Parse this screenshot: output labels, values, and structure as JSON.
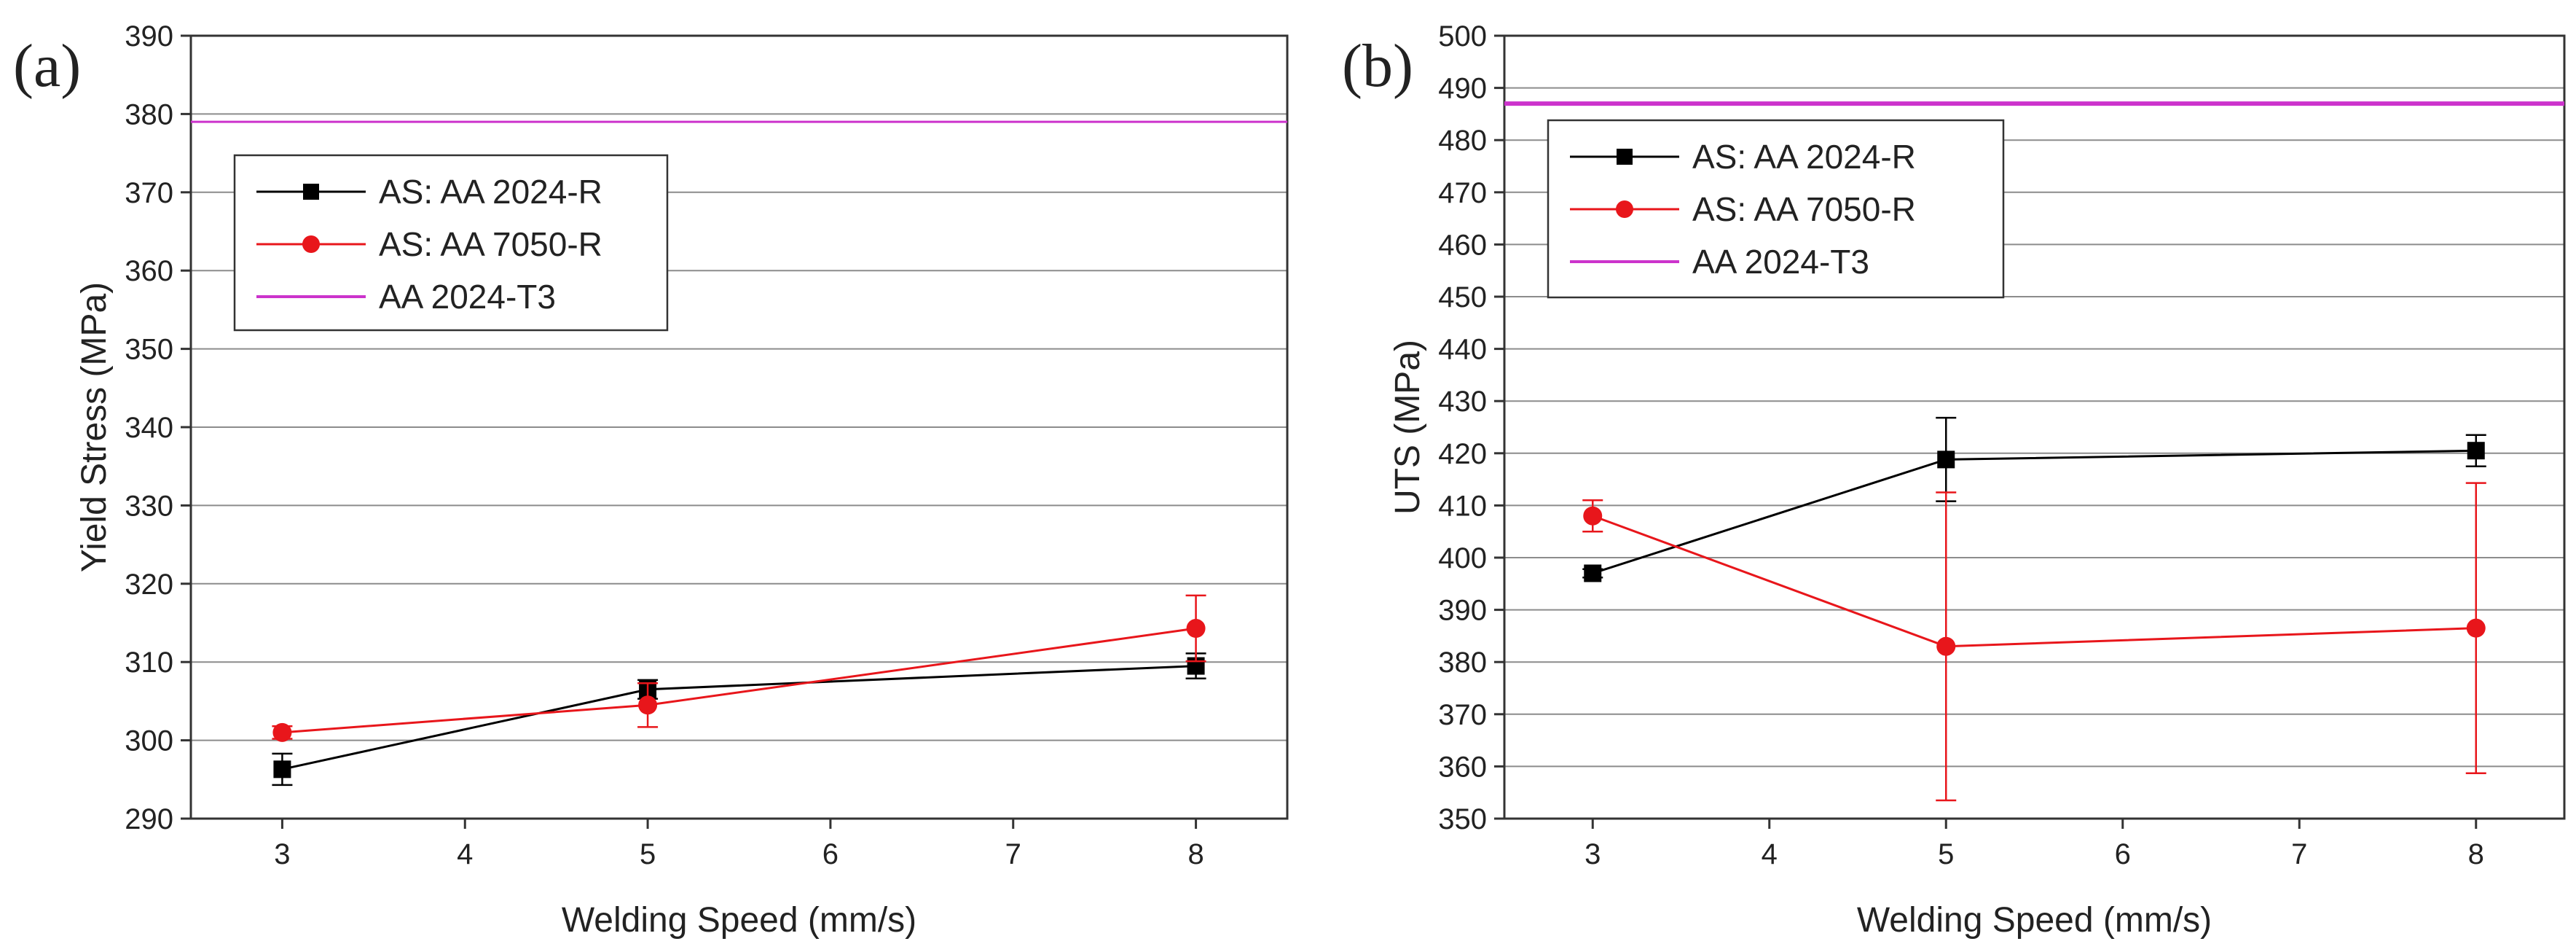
{
  "chart_data": [
    {
      "panel_label": "(a)",
      "type": "line",
      "title": "",
      "xlabel": "Welding Speed (mm/s)",
      "ylabel": "Yield Stress (MPa)",
      "xlim": [
        2.5,
        8.5
      ],
      "ylim": [
        290,
        390
      ],
      "xticks": [
        3,
        4,
        5,
        6,
        7,
        8
      ],
      "yticks": [
        290,
        300,
        310,
        320,
        330,
        340,
        350,
        360,
        370,
        380,
        390
      ],
      "grid": "horizontal",
      "legend_position": "upper-left",
      "series": [
        {
          "name": "AS: AA 2024-R",
          "color": "#000000",
          "marker": "square",
          "x": [
            3,
            5,
            8
          ],
          "y": [
            296.3,
            306.5,
            309.5
          ],
          "err": [
            2.0,
            1.2,
            1.6
          ]
        },
        {
          "name": "AS: AA 7050-R",
          "color": "#e8161b",
          "marker": "circle",
          "x": [
            3,
            5,
            8
          ],
          "y": [
            301.0,
            304.5,
            314.3
          ],
          "err": [
            0.8,
            2.8,
            4.2
          ]
        }
      ],
      "reference_lines": [
        {
          "name": "AA 2024-T3",
          "color": "#cc33cc",
          "y": 379
        }
      ]
    },
    {
      "panel_label": "(b)",
      "type": "line",
      "title": "",
      "xlabel": "Welding Speed (mm/s)",
      "ylabel": "UTS (MPa)",
      "xlim": [
        2.5,
        8.5
      ],
      "ylim": [
        350,
        500
      ],
      "xticks": [
        3,
        4,
        5,
        6,
        7,
        8
      ],
      "yticks": [
        350,
        360,
        370,
        380,
        390,
        400,
        410,
        420,
        430,
        440,
        450,
        460,
        470,
        480,
        490,
        500
      ],
      "grid": "horizontal",
      "legend_position": "upper-left",
      "series": [
        {
          "name": "AS: AA 2024-R",
          "color": "#000000",
          "marker": "square",
          "x": [
            3,
            5,
            8
          ],
          "y": [
            397.0,
            418.8,
            420.5
          ],
          "err": [
            0.8,
            8.0,
            3.0
          ]
        },
        {
          "name": "AS: AA 7050-R",
          "color": "#e8161b",
          "marker": "circle",
          "x": [
            3,
            5,
            8
          ],
          "y": [
            408.0,
            383.0,
            386.5
          ],
          "err": [
            3.0,
            29.5,
            27.8
          ]
        }
      ],
      "reference_lines": [
        {
          "name": "AA 2024-T3",
          "color": "#cc33cc",
          "y": 487
        }
      ]
    }
  ]
}
